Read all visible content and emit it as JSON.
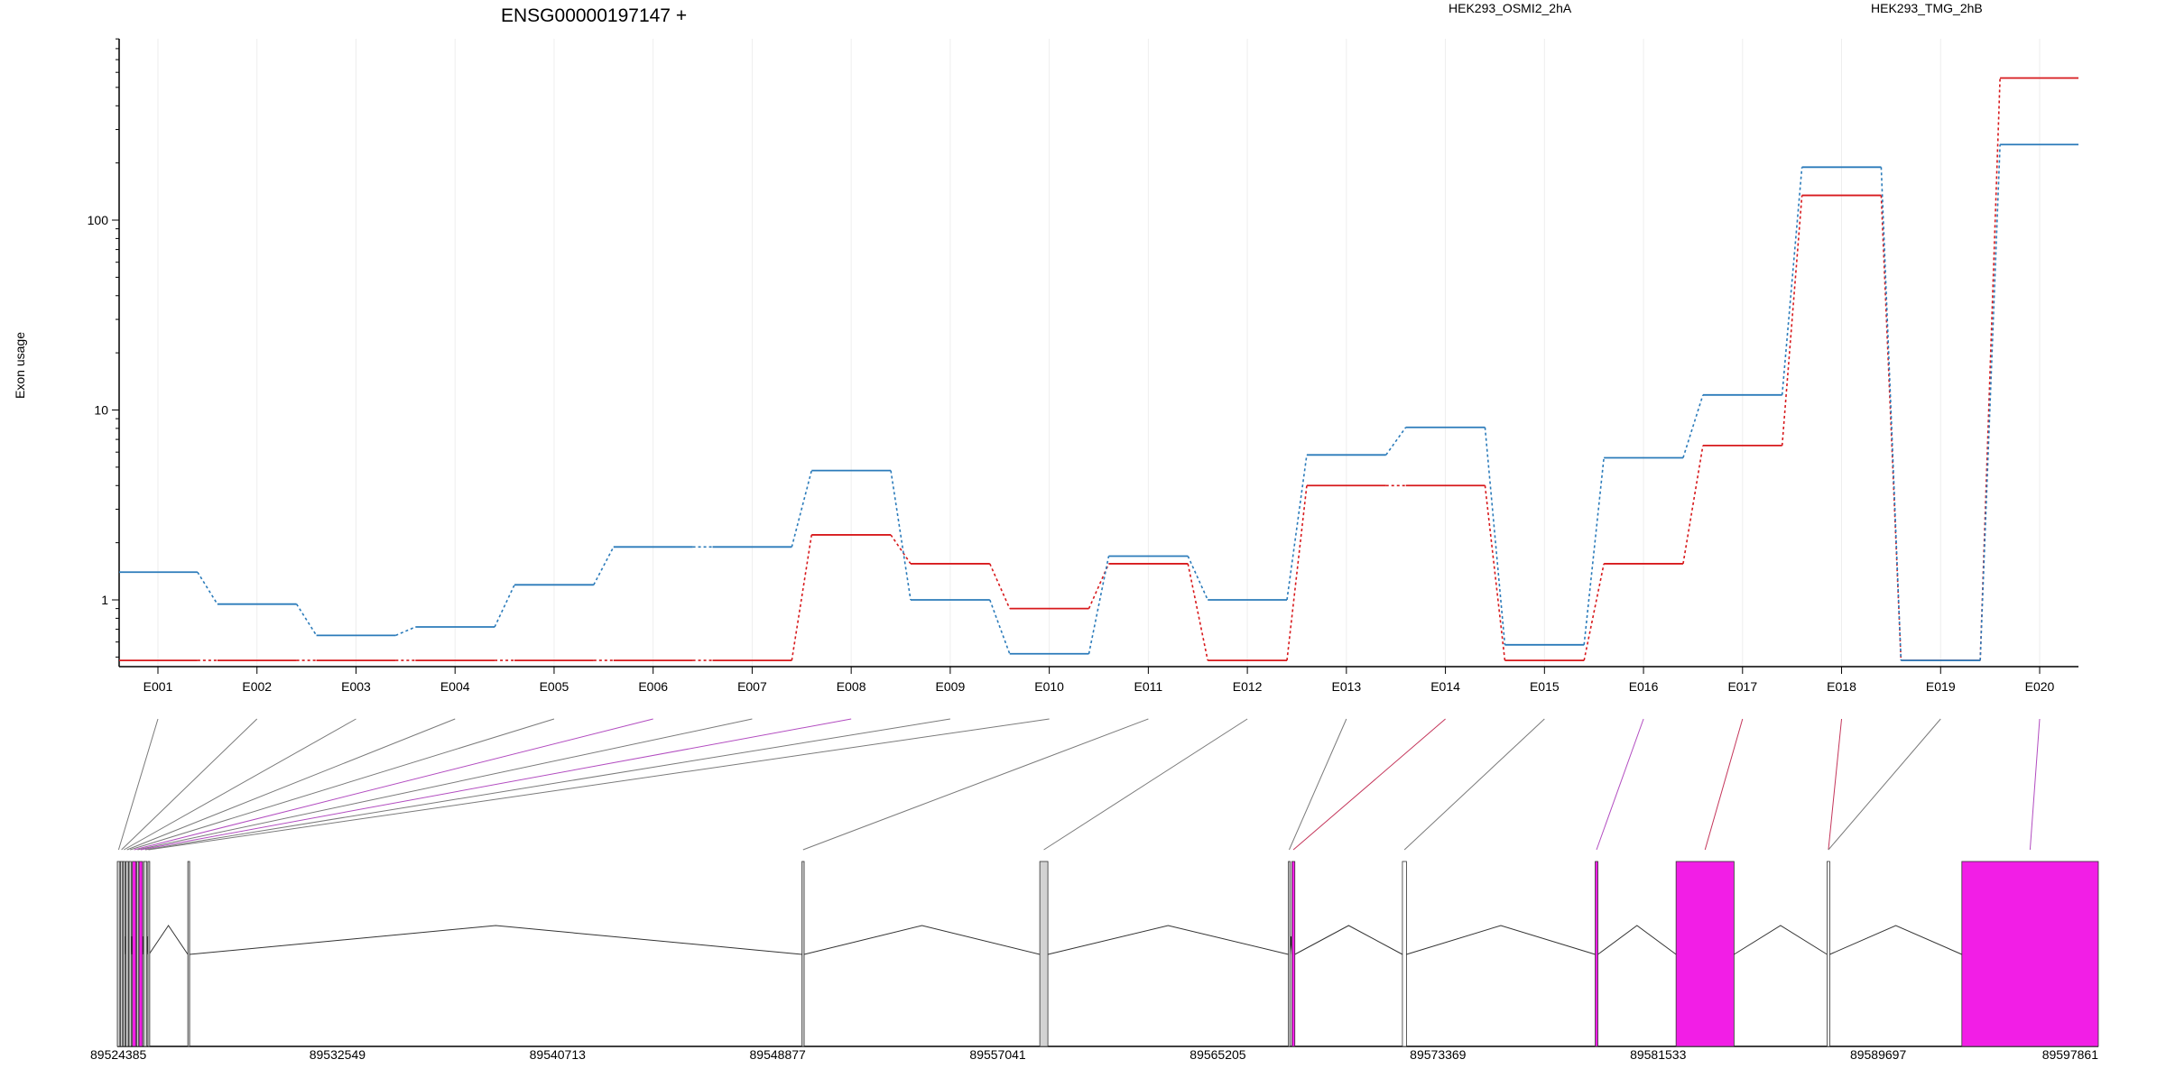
{
  "chart_data": {
    "type": "line",
    "title": "ENSG00000197147 +",
    "ylabel": "Exon usage",
    "y_scale": "log",
    "yticks": [
      1,
      10,
      100
    ],
    "categories": [
      "E001",
      "E002",
      "E003",
      "E004",
      "E005",
      "E006",
      "E007",
      "E008",
      "E009",
      "E010",
      "E011",
      "E012",
      "E013",
      "E014",
      "E015",
      "E016",
      "E017",
      "E018",
      "E019",
      "E020"
    ],
    "series": [
      {
        "name": "HEK293_OSMI2_2hA",
        "color": "#d7191c",
        "values": [
          0.48,
          0.48,
          0.48,
          0.48,
          0.48,
          0.48,
          0.48,
          2.2,
          1.55,
          0.9,
          1.55,
          0.48,
          4,
          4,
          0.48,
          1.55,
          6.5,
          135,
          0.48,
          560
        ]
      },
      {
        "name": "HEK293_TMG_2hB",
        "color": "#2b7bba",
        "values": [
          1.4,
          0.95,
          0.65,
          0.72,
          1.2,
          1.9,
          1.9,
          4.8,
          1.0,
          0.52,
          1.7,
          1.0,
          5.8,
          8.1,
          0.58,
          5.6,
          12,
          190,
          0.48,
          250
        ]
      }
    ],
    "gene_model": {
      "x_axis_ticks": [
        "89524385",
        "89532549",
        "89540713",
        "89548877",
        "89557041",
        "89565205",
        "89573369",
        "89581533",
        "89589697",
        "89597861"
      ],
      "range": [
        89524385,
        89597861
      ],
      "highlight_color": "#f21ee6",
      "exons": [
        {
          "id": "E001",
          "start": 89524385,
          "end": 89524480,
          "fill": "#d3d3d3"
        },
        {
          "id": "E002",
          "start": 89524500,
          "end": 89524580,
          "fill": "#d3d3d3"
        },
        {
          "id": "E003",
          "start": 89524600,
          "end": 89524660,
          "fill": "#d3d3d3"
        },
        {
          "id": "E004",
          "start": 89524700,
          "end": 89524790,
          "fill": "#d3d3d3"
        },
        {
          "id": "E005",
          "start": 89524820,
          "end": 89524900,
          "fill": "#d3d3d3"
        },
        {
          "id": "E006",
          "start": 89524940,
          "end": 89525080,
          "fill": "#f21ee6"
        },
        {
          "id": "E007",
          "start": 89525110,
          "end": 89525160,
          "fill": "#d3d3d3"
        },
        {
          "id": "E008",
          "start": 89525190,
          "end": 89525320,
          "fill": "#f21ee6"
        },
        {
          "id": "E009",
          "start": 89525360,
          "end": 89525480,
          "fill": "#d3d3d3"
        },
        {
          "id": "E010",
          "start": 89525520,
          "end": 89525560,
          "fill": "#d3d3d3"
        },
        {
          "id": "E011",
          "start": 89527000,
          "end": 89527060,
          "fill": "#d3d3d3"
        },
        {
          "id": "E012",
          "start": 89549780,
          "end": 89549860,
          "fill": "#d3d3d3"
        },
        {
          "id": "E013",
          "start": 89558600,
          "end": 89558900,
          "fill": "#d3d3d3"
        },
        {
          "id": "E014",
          "start": 89567820,
          "end": 89567880,
          "fill": "#d3d3d3"
        },
        {
          "id": "E015",
          "start": 89567950,
          "end": 89568060,
          "fill": "#f21ee6"
        },
        {
          "id": "E016",
          "start": 89572050,
          "end": 89572200,
          "fill": "#ffffff"
        },
        {
          "id": "E017",
          "start": 89579200,
          "end": 89579300,
          "fill": "#f21ee6"
        },
        {
          "id": "E018",
          "start": 89582200,
          "end": 89584350,
          "fill": "#f21ee6"
        },
        {
          "id": "E019",
          "start": 89587800,
          "end": 89587900,
          "fill": "#ffffff"
        },
        {
          "id": "E020",
          "start": 89592800,
          "end": 89597861,
          "fill": "#f21ee6"
        }
      ],
      "exon_link_target": [
        0,
        1,
        2,
        3,
        4,
        5,
        6,
        7,
        8,
        9,
        11,
        12,
        13,
        14,
        15,
        16,
        17,
        18,
        18,
        19
      ],
      "link_colors": [
        "#7a7a7a",
        "#7a7a7a",
        "#7a7a7a",
        "#7a7a7a",
        "#7a7a7a",
        "#b24cc0",
        "#7a7a7a",
        "#b24cc0",
        "#7a7a7a",
        "#7a7a7a",
        "#7a7a7a",
        "#7a7a7a",
        "#7a7a7a",
        "#c4355a",
        "#7a7a7a",
        "#b24cc0",
        "#c4355a",
        "#c4355a",
        "#7a7a7a",
        "#b24cc0"
      ]
    }
  }
}
